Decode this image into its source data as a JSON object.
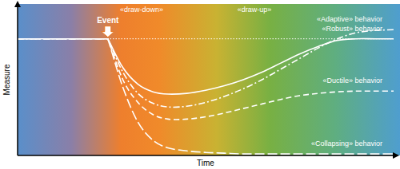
{
  "chart_data": {
    "type": "line",
    "x_label": "Time",
    "y_label": "Measure",
    "tick_labels": false,
    "xlim": [
      0,
      100
    ],
    "ylim": [
      0,
      100
    ],
    "annotations": [
      {
        "text": "«draw-down»"
      },
      {
        "text": "«draw-up»"
      },
      {
        "text": "Event",
        "x": 24
      }
    ],
    "x": [
      0,
      10,
      20,
      24,
      28,
      32,
      36,
      40,
      45,
      50,
      55,
      60,
      65,
      70,
      75,
      80,
      85,
      90,
      95,
      100
    ],
    "series": [
      {
        "name": "«Adaptive» behavior",
        "color": "#ffffff",
        "line_style": "dash-dot",
        "values": [
          77,
          77,
          77,
          77,
          55,
          41,
          34.5,
          32,
          32.5,
          35,
          39,
          44,
          50,
          57,
          64,
          71,
          77,
          81,
          82.5,
          83
        ]
      },
      {
        "name": "«Robust» behavior",
        "color": "#ffffff",
        "line_style": "solid",
        "values": [
          77,
          77,
          77,
          77,
          58,
          47,
          42,
          40.5,
          41,
          43,
          46,
          50,
          55,
          61,
          67,
          72,
          76,
          77,
          77,
          77
        ]
      },
      {
        "name": "«Ductile» behavior",
        "color": "#ffffff",
        "line_style": "dashed",
        "values": [
          77,
          77,
          77,
          77,
          50,
          35,
          27,
          24,
          24,
          25.5,
          28,
          31,
          34,
          37,
          39.5,
          41,
          42,
          42.5,
          42.5,
          42.5
        ]
      },
      {
        "name": "«Collapsing» behavior",
        "color": "#ffffff",
        "line_style": "long-dash",
        "values": [
          77,
          77,
          77,
          77,
          45,
          22,
          10,
          5,
          3,
          2,
          1.5,
          1,
          1,
          1,
          1,
          1,
          1,
          1,
          1,
          1
        ]
      }
    ]
  }
}
